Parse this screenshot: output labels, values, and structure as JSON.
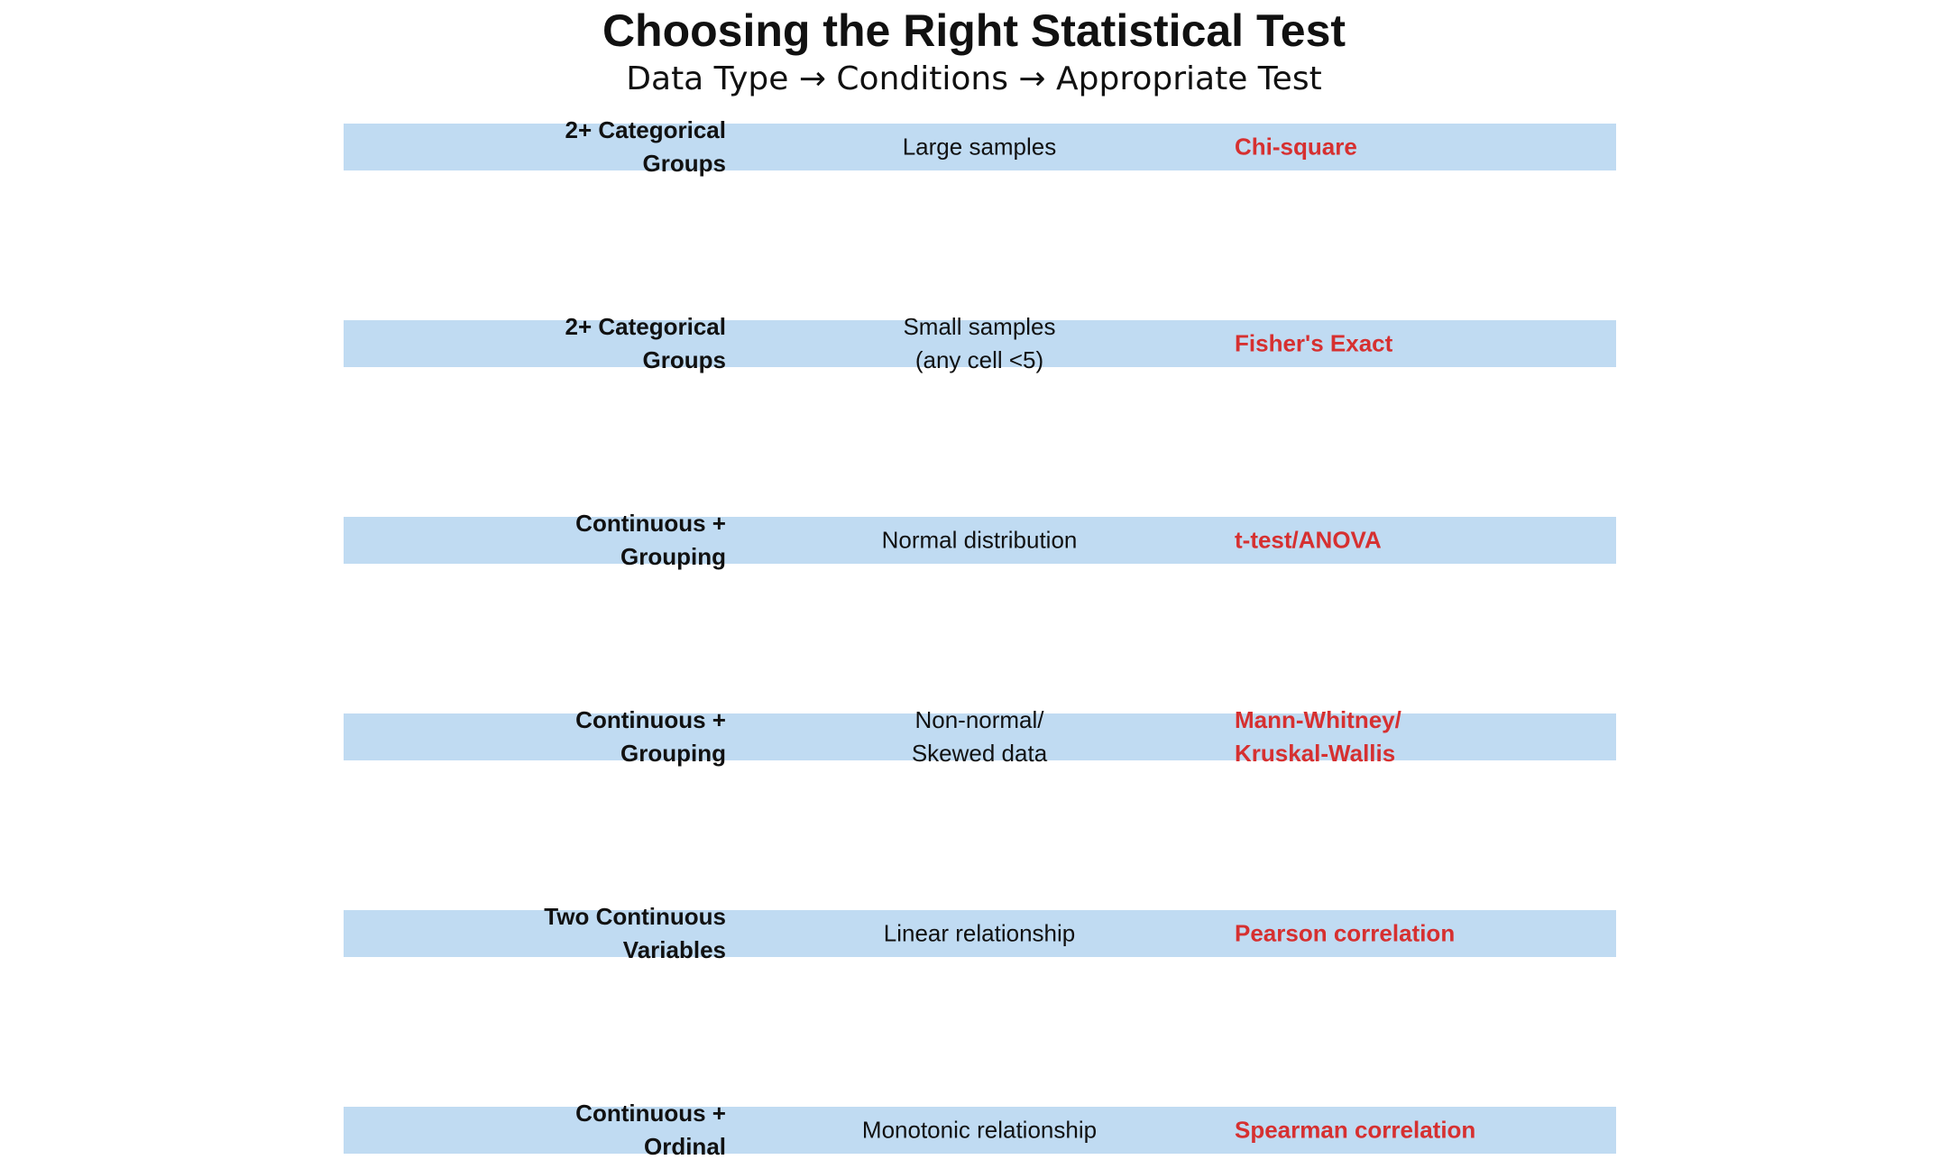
{
  "title": "Choosing the Right Statistical Test",
  "subtitle": "Data Type → Conditions → Appropriate Test",
  "colors": {
    "band": "#c0dbf2",
    "test_text": "#d63030",
    "text": "#111111"
  },
  "rows": [
    {
      "data_type": "2+ Categorical\nGroups",
      "condition": "Large samples",
      "test": "Chi-square"
    },
    {
      "data_type": "2+ Categorical\nGroups",
      "condition": "Small samples\n(any cell <5)",
      "test": "Fisher's Exact"
    },
    {
      "data_type": "Continuous +\nGrouping",
      "condition": "Normal distribution",
      "test": "t-test/ANOVA"
    },
    {
      "data_type": "Continuous +\nGrouping",
      "condition": "Non-normal/\nSkewed data",
      "test": "Mann-Whitney/\nKruskal-Wallis"
    },
    {
      "data_type": "Two Continuous\nVariables",
      "condition": "Linear relationship",
      "test": "Pearson correlation"
    },
    {
      "data_type": "Continuous +\nOrdinal",
      "condition": "Monotonic relationship",
      "test": "Spearman correlation"
    }
  ]
}
